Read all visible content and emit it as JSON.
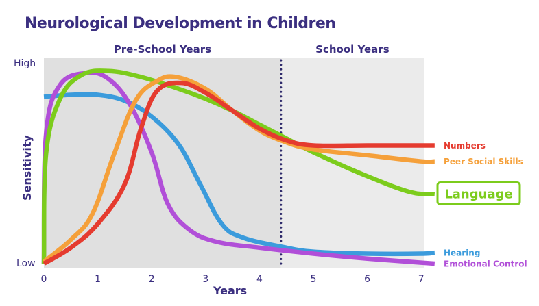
{
  "chart_data": {
    "type": "line",
    "title": "Neurological Development in Children",
    "xlabel": "Years",
    "ylabel": "Sensitivity",
    "xlim": [
      0,
      7.25
    ],
    "ylim": [
      0,
      100
    ],
    "x_ticks": [
      "0",
      "1",
      "2",
      "3",
      "4",
      "5",
      "6",
      "7"
    ],
    "y_tick_labels": {
      "low": "Low",
      "high": "High"
    },
    "grid": false,
    "regions": [
      {
        "label": "Pre-School Years",
        "from": 0,
        "to": 4.4,
        "color": "#e0e0e0"
      },
      {
        "label": "School Years",
        "from": 4.4,
        "to": 7.05,
        "color": "#ebebeb"
      }
    ],
    "divider": {
      "x": 4.4,
      "style": "dotted",
      "color": "#2e2a6b"
    },
    "series": [
      {
        "name": "Numbers",
        "color": "#e53b2f",
        "highlight": false,
        "points": [
          [
            0,
            0
          ],
          [
            0.5,
            8
          ],
          [
            1,
            20
          ],
          [
            1.5,
            40
          ],
          [
            1.8,
            68
          ],
          [
            2.1,
            87
          ],
          [
            2.55,
            91
          ],
          [
            3,
            86
          ],
          [
            3.5,
            77
          ],
          [
            4,
            68
          ],
          [
            4.5,
            62
          ],
          [
            5,
            59.5
          ],
          [
            6,
            59.5
          ],
          [
            7,
            59.5
          ],
          [
            7.25,
            59.5
          ]
        ]
      },
      {
        "name": "Peer Social Skills",
        "color": "#f5a03a",
        "highlight": false,
        "points": [
          [
            0,
            1
          ],
          [
            0.5,
            12
          ],
          [
            0.9,
            25
          ],
          [
            1.3,
            55
          ],
          [
            1.7,
            82
          ],
          [
            2.1,
            92
          ],
          [
            2.45,
            94
          ],
          [
            3,
            88
          ],
          [
            3.5,
            77
          ],
          [
            4,
            67
          ],
          [
            4.5,
            61
          ],
          [
            5,
            57.5
          ],
          [
            6,
            54.5
          ],
          [
            7,
            51.5
          ],
          [
            7.25,
            51.5
          ]
        ]
      },
      {
        "name": "Language",
        "color": "#7ccc1c",
        "highlight": true,
        "points": [
          [
            0,
            0
          ],
          [
            0.04,
            55
          ],
          [
            0.3,
            83
          ],
          [
            0.7,
            95
          ],
          [
            1.2,
            97
          ],
          [
            1.8,
            94
          ],
          [
            2.5,
            88
          ],
          [
            3,
            83
          ],
          [
            3.5,
            77
          ],
          [
            4,
            70
          ],
          [
            4.5,
            63
          ],
          [
            5,
            56
          ],
          [
            6,
            44
          ],
          [
            6.8,
            36
          ],
          [
            7.25,
            35
          ]
        ]
      },
      {
        "name": "Hearing",
        "color": "#3b9bdc",
        "highlight": false,
        "points": [
          [
            0,
            84
          ],
          [
            0.5,
            85
          ],
          [
            1,
            85
          ],
          [
            1.5,
            82
          ],
          [
            2,
            74
          ],
          [
            2.5,
            60
          ],
          [
            2.9,
            40
          ],
          [
            3.3,
            20
          ],
          [
            3.7,
            13
          ],
          [
            4.5,
            8
          ],
          [
            5,
            6
          ],
          [
            6,
            5
          ],
          [
            7,
            5
          ],
          [
            7.25,
            5.5
          ]
        ]
      },
      {
        "name": "Emotional Control",
        "color": "#b14fd8",
        "highlight": false,
        "points": [
          [
            0,
            0
          ],
          [
            0.04,
            65
          ],
          [
            0.3,
            90
          ],
          [
            0.8,
            96
          ],
          [
            1.2,
            93
          ],
          [
            1.6,
            80
          ],
          [
            2,
            56
          ],
          [
            2.3,
            30
          ],
          [
            2.7,
            17
          ],
          [
            3.2,
            11
          ],
          [
            4,
            8
          ],
          [
            5,
            5
          ],
          [
            6,
            2.5
          ],
          [
            7,
            0.5
          ],
          [
            7.25,
            0
          ]
        ]
      }
    ]
  }
}
